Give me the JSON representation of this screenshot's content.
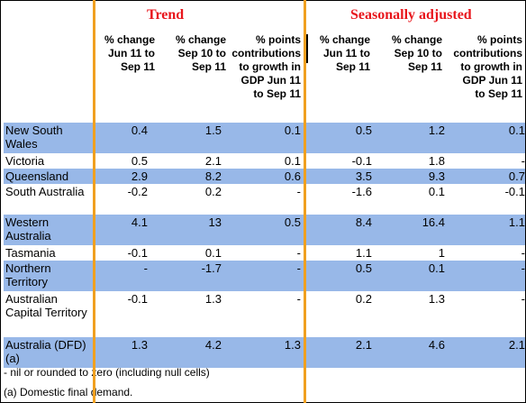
{
  "groups": {
    "trend": "Trend",
    "seasonal": "Seasonally adjusted"
  },
  "columns": [
    "% change\nJun 11 to\nSep 11",
    "% change\nSep 10 to\nSep 11",
    "% points\ncontributions\nto growth in\nGDP Jun 11\nto Sep 11",
    "% change\nJun 11 to\nSep 11",
    "% change\nSep 10 to\nSep 11",
    "% points\ncontributions\nto growth in\nGDP Jun 11\nto Sep 11"
  ],
  "rows": [
    {
      "label": "New South Wales",
      "values": [
        "0.4",
        "1.5",
        "0.1",
        "0.5",
        "1.2",
        "0.1"
      ]
    },
    {
      "label": "Victoria",
      "values": [
        "0.5",
        "2.1",
        "0.1",
        "-0.1",
        "1.8",
        "-"
      ]
    },
    {
      "label": "Queensland",
      "values": [
        "2.9",
        "8.2",
        "0.6",
        "3.5",
        "9.3",
        "0.7"
      ]
    },
    {
      "label": "South Australia",
      "values": [
        "-0.2",
        "0.2",
        "-",
        "-1.6",
        "0.1",
        "-0.1"
      ]
    },
    {
      "label": "Western Australia",
      "values": [
        "4.1",
        "13",
        "0.5",
        "8.4",
        "16.4",
        "1.1"
      ]
    },
    {
      "label": "Tasmania",
      "values": [
        "-0.1",
        "0.1",
        "-",
        "1.1",
        "1",
        "-"
      ]
    },
    {
      "label": "Northern Territory",
      "values": [
        "-",
        "-1.7",
        "-",
        "0.5",
        "0.1",
        "-"
      ]
    },
    {
      "label": "Australian Capital Territory",
      "values": [
        "-0.1",
        "1.3",
        "-",
        "0.2",
        "1.3",
        "-"
      ]
    },
    {
      "label": "Australia (DFD)(a)",
      "values": [
        "1.3",
        "4.2",
        "1.3",
        "2.1",
        "4.6",
        "2.1"
      ]
    }
  ],
  "footnotes": [
    "- nil or rounded to zero (including null cells)",
    "(a) Domestic final demand."
  ],
  "colors": {
    "row_shade": "#98b8e8",
    "divider": "#f0a020",
    "title": "#e8161c"
  }
}
